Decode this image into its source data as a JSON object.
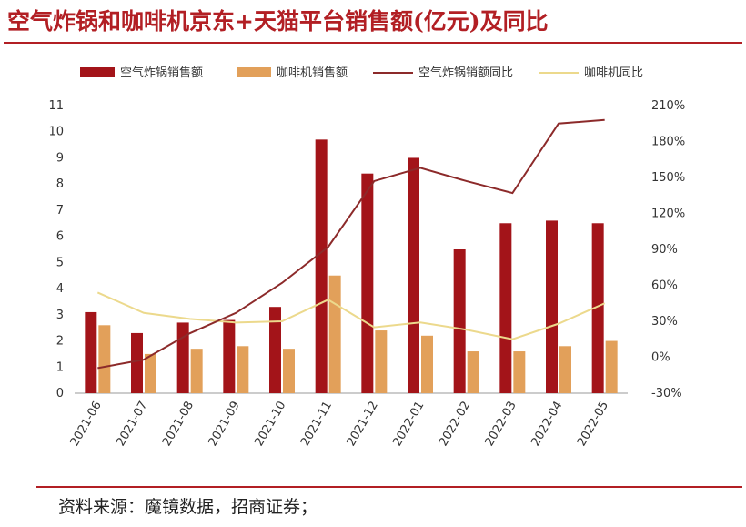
{
  "title": "空气炸锅和咖啡机京东+天猫平台销售额(亿元)及同比",
  "source": "资料来源：魔镜数据，招商证券；",
  "colors": {
    "title": "#b21f24",
    "air_bar": "#a31419",
    "coffee_bar": "#e2a05a",
    "air_line": "#8c2a2a",
    "coffee_line": "#ecd98c"
  },
  "chart_data": {
    "type": "bar",
    "categories": [
      "2021-06",
      "2021-07",
      "2021-08",
      "2021-09",
      "2021-10",
      "2021-11",
      "2021-12",
      "2022-01",
      "2022-02",
      "2022-03",
      "2022-04",
      "2022-05"
    ],
    "series": [
      {
        "name": "空气炸锅销售额",
        "kind": "bar",
        "axis": "left",
        "values": [
          3.1,
          2.3,
          2.7,
          2.8,
          3.3,
          9.7,
          8.4,
          9.0,
          5.5,
          6.5,
          6.6,
          6.5
        ]
      },
      {
        "name": "咖啡机销售额",
        "kind": "bar",
        "axis": "left",
        "values": [
          2.6,
          1.5,
          1.7,
          1.8,
          1.7,
          4.5,
          2.4,
          2.2,
          1.6,
          1.6,
          1.8,
          2.0
        ]
      },
      {
        "name": "空气炸锅销额同比",
        "kind": "line",
        "axis": "right",
        "values": [
          -9,
          -2,
          20,
          37,
          62,
          92,
          147,
          158,
          147,
          137,
          195,
          198
        ]
      },
      {
        "name": "咖啡机同比",
        "kind": "line",
        "axis": "right",
        "values": [
          54,
          37,
          32,
          29,
          30,
          48,
          25,
          29,
          23,
          15,
          28,
          45
        ]
      }
    ],
    "y_left": {
      "min": 0,
      "max": 11,
      "ticks": [
        "0",
        "1",
        "2",
        "3",
        "4",
        "5",
        "6",
        "7",
        "8",
        "9",
        "10",
        "11"
      ]
    },
    "y_right": {
      "min": -30,
      "max": 210,
      "ticks": [
        "-30%",
        "0%",
        "30%",
        "60%",
        "90%",
        "120%",
        "150%",
        "180%",
        "210%"
      ]
    },
    "legend_position": "top"
  }
}
